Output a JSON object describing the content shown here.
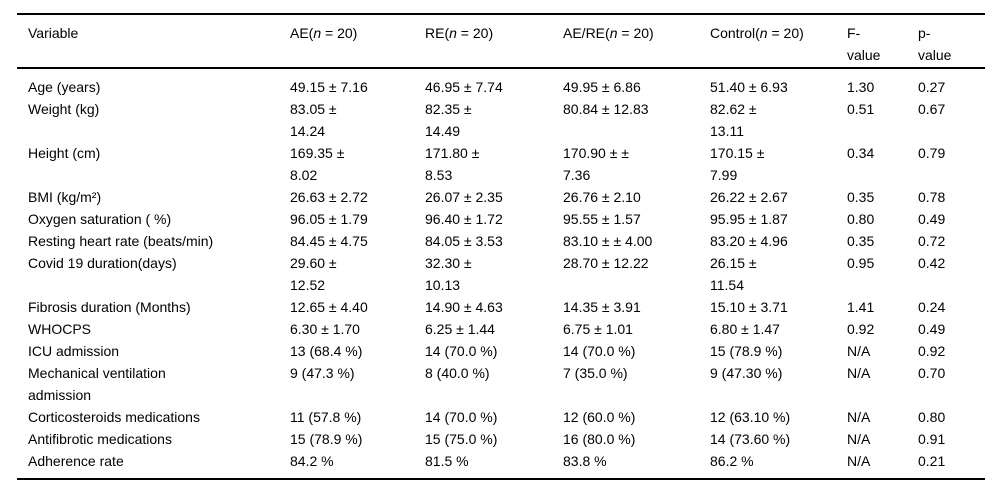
{
  "table": {
    "columns": [
      {
        "pre": "Variable",
        "n": "",
        "post": ""
      },
      {
        "pre": "AE(",
        "n": "n",
        "post": " = 20)"
      },
      {
        "pre": "RE(",
        "n": "n",
        "post": " = 20)"
      },
      {
        "pre": "AE/RE(",
        "n": "n",
        "post": " = 20)"
      },
      {
        "pre": "Control(",
        "n": "n",
        "post": " = 20)"
      },
      {
        "pre": "F-\nvalue",
        "n": "",
        "post": ""
      },
      {
        "pre": "p-\nvalue",
        "n": "",
        "post": ""
      }
    ],
    "rows": [
      {
        "variable": "Age (years)",
        "cells": [
          "49.15 ± 7.16",
          "46.95 ± 7.74",
          "49.95 ± 6.86",
          "51.40 ± 6.93",
          "1.30",
          "0.27"
        ]
      },
      {
        "variable": "Weight (kg)",
        "cells": [
          "83.05 ±\n14.24",
          "82.35 ±\n14.49",
          "80.84 ± 12.83",
          "82.62 ±\n13.11",
          "0.51",
          "0.67"
        ]
      },
      {
        "variable": "Height (cm)",
        "cells": [
          "169.35 ±\n8.02",
          "171.80 ±\n8.53",
          "170.90 ± ±\n7.36",
          "170.15 ±\n7.99",
          "0.34",
          "0.79"
        ]
      },
      {
        "variable": "BMI (kg/m²)",
        "cells": [
          "26.63 ± 2.72",
          "26.07 ± 2.35",
          "26.76 ± 2.10",
          "26.22 ± 2.67",
          "0.35",
          "0.78"
        ]
      },
      {
        "variable": "Oxygen saturation ( %)",
        "cells": [
          "96.05 ± 1.79",
          "96.40 ± 1.72",
          "95.55 ± 1.57",
          "95.95 ± 1.87",
          "0.80",
          "0.49"
        ]
      },
      {
        "variable": "Resting heart rate (beats/min)",
        "cells": [
          "84.45 ± 4.75",
          "84.05 ± 3.53",
          "83.10 ± ± 4.00",
          "83.20 ± 4.96",
          "0.35",
          "0.72"
        ]
      },
      {
        "variable": "Covid 19 duration(days)",
        "cells": [
          "29.60 ±\n12.52",
          "32.30 ±\n10.13",
          "28.70 ± 12.22",
          "26.15 ±\n11.54",
          "0.95",
          "0.42"
        ]
      },
      {
        "variable": "Fibrosis duration (Months)",
        "cells": [
          "12.65 ± 4.40",
          "14.90 ± 4.63",
          "14.35 ± 3.91",
          "15.10 ± 3.71",
          "1.41",
          "0.24"
        ]
      },
      {
        "variable": "WHOCPS",
        "cells": [
          "6.30 ± 1.70",
          "6.25 ± 1.44",
          "6.75 ± 1.01",
          "6.80 ± 1.47",
          "0.92",
          "0.49"
        ]
      },
      {
        "variable": "ICU admission",
        "cells": [
          "13 (68.4 %)",
          "14 (70.0 %)",
          "14 (70.0 %)",
          "15 (78.9 %)",
          "N/A",
          "0.92"
        ]
      },
      {
        "variable": "Mechanical ventilation\nadmission",
        "cells": [
          "9 (47.3 %)",
          "8 (40.0 %)",
          "7 (35.0 %)",
          "9 (47.30 %)",
          "N/A",
          "0.70"
        ]
      },
      {
        "variable": "Corticosteroids medications",
        "cells": [
          "11 (57.8 %)",
          "14 (70.0 %)",
          "12 (60.0 %)",
          "12 (63.10 %)",
          "N/A",
          "0.80"
        ]
      },
      {
        "variable": "Antifibrotic medications",
        "cells": [
          "15 (78.9 %)",
          "15 (75.0 %)",
          "16 (80.0 %)",
          "14 (73.60 %)",
          "N/A",
          "0.91"
        ]
      },
      {
        "variable": "Adherence rate",
        "cells": [
          "84.2 %",
          "81.5 %",
          "83.8 %",
          "86.2 %",
          "N/A",
          "0.21"
        ]
      }
    ],
    "colors": {
      "text": "#000000",
      "background": "#ffffff",
      "rule": "#000000"
    }
  }
}
